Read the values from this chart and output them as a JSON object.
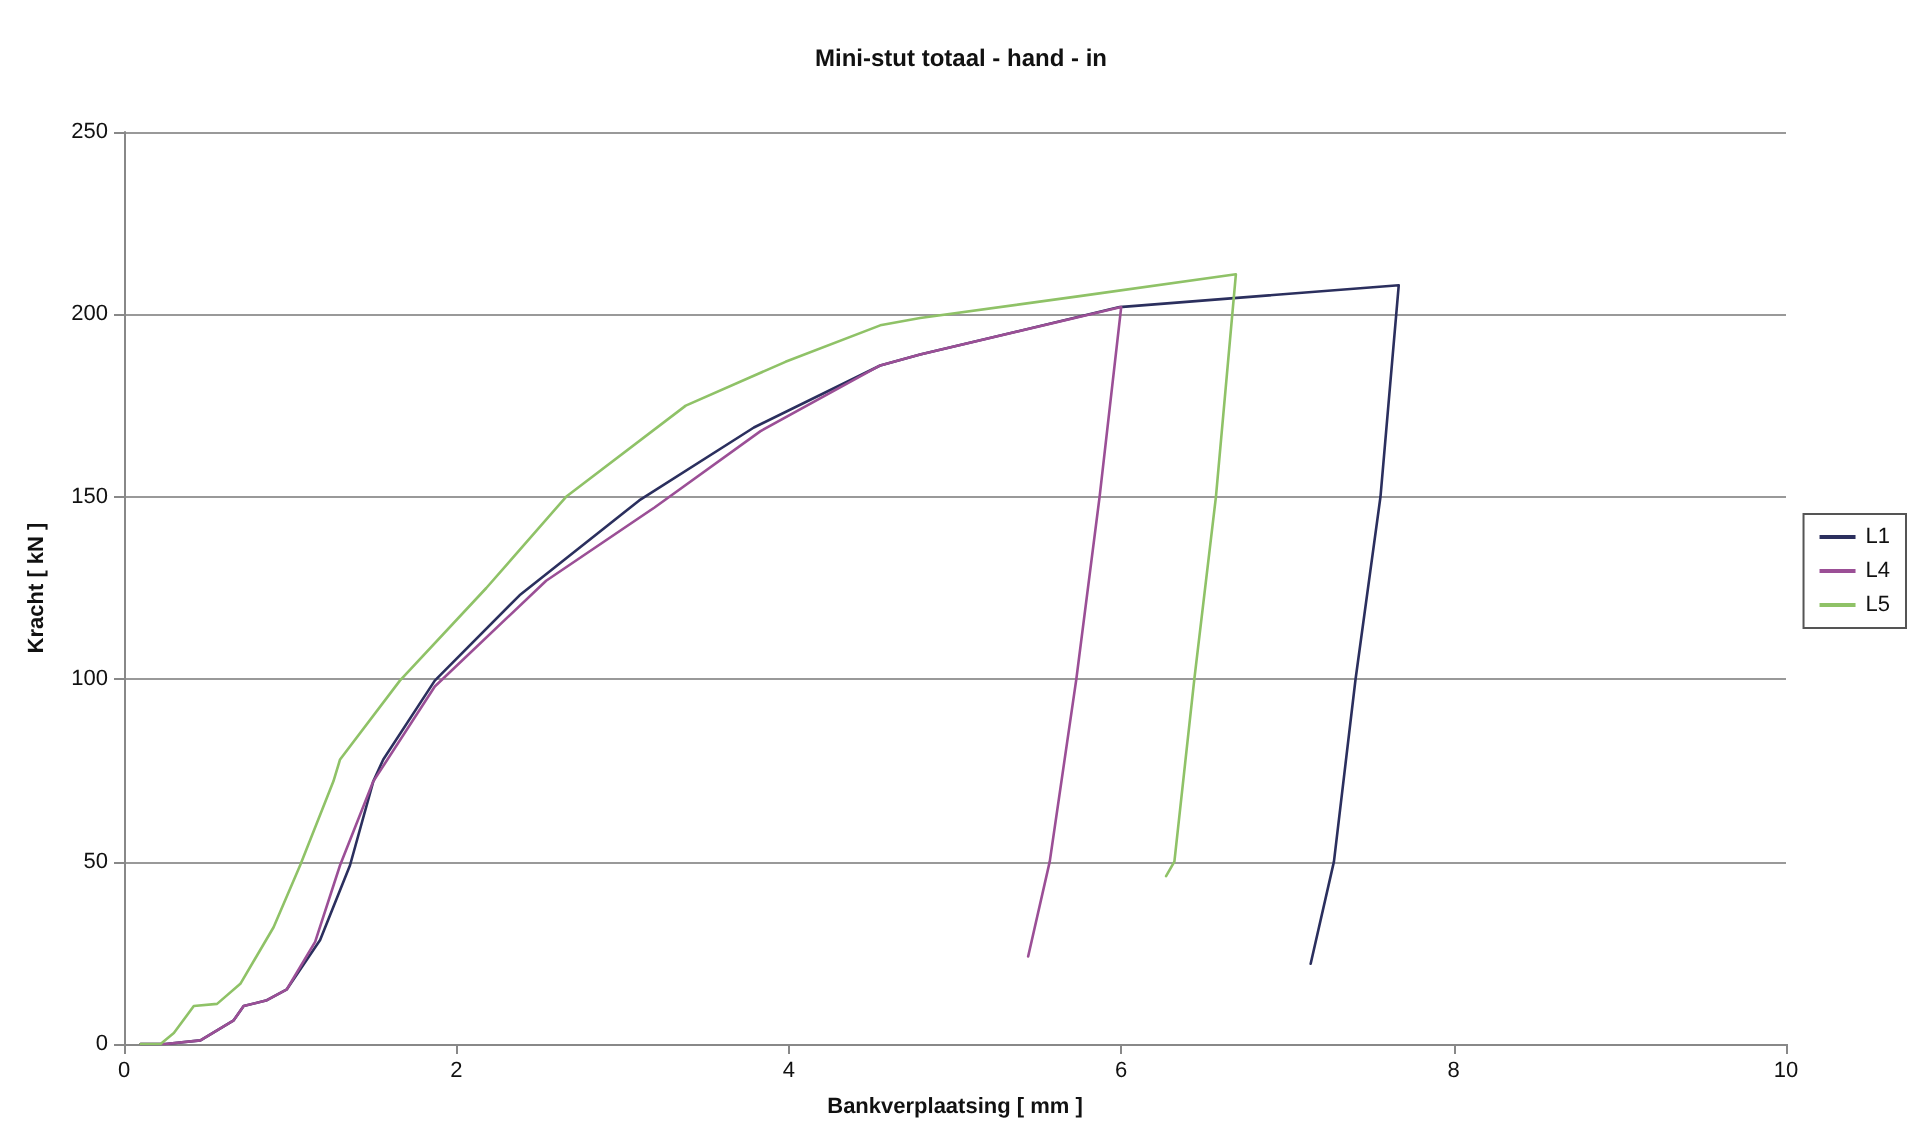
{
  "chart_data": {
    "type": "line",
    "title": "Mini-stut totaal - hand - in",
    "xlabel": "Bankverplaatsing [ mm ]",
    "ylabel": "Kracht [ kN ]",
    "xlim": [
      0,
      10
    ],
    "xticks": [
      0,
      2,
      4,
      6,
      8,
      10
    ],
    "ylim": [
      0,
      250
    ],
    "yticks": [
      0,
      50,
      100,
      150,
      200,
      250
    ],
    "grid": "y",
    "legend": "right",
    "marker": "none",
    "line_style": "solid",
    "series": [
      {
        "name": "L1",
        "color": "#2b2f5e",
        "x": [
          0.1,
          0.25,
          0.46,
          0.66,
          0.72,
          0.86,
          0.98,
          1.18,
          1.36,
          1.5,
          1.56,
          1.87,
          2.38,
          3.1,
          3.79,
          4.55,
          4.79,
          5.99,
          7.67,
          7.56,
          7.41,
          7.28,
          7.14
        ],
        "values": [
          0,
          0,
          1,
          6.5,
          10.4,
          12,
          15,
          28.5,
          49,
          72,
          78,
          99.6,
          123,
          149,
          169,
          186,
          189,
          202,
          208,
          150,
          100,
          50,
          22
        ]
      },
      {
        "name": "L4",
        "color": "#9b4f96",
        "x": [
          0.1,
          0.25,
          0.46,
          0.66,
          0.72,
          0.86,
          0.98,
          1.15,
          1.3,
          1.5,
          1.87,
          2.54,
          3.19,
          3.83,
          4.55,
          4.79,
          6.0,
          5.87,
          5.73,
          5.57,
          5.44
        ],
        "values": [
          0,
          0,
          1,
          6.5,
          10.4,
          12,
          15,
          28,
          49,
          72,
          98,
          127,
          147,
          168,
          186,
          189,
          202,
          150,
          100,
          50,
          24
        ]
      },
      {
        "name": "L5",
        "color": "#8fc267",
        "x": [
          0.1,
          0.22,
          0.3,
          0.42,
          0.56,
          0.7,
          0.9,
          1.06,
          1.26,
          1.3,
          1.66,
          2.18,
          2.66,
          3.38,
          3.98,
          4.55,
          4.79,
          5.75,
          6.69,
          6.57,
          6.44,
          6.32,
          6.27
        ],
        "values": [
          0,
          0,
          3,
          10.4,
          11,
          16.5,
          32,
          49,
          72,
          78,
          99.6,
          125,
          150,
          175,
          187,
          197,
          199,
          205,
          211,
          150,
          100,
          50,
          46
        ]
      }
    ]
  }
}
